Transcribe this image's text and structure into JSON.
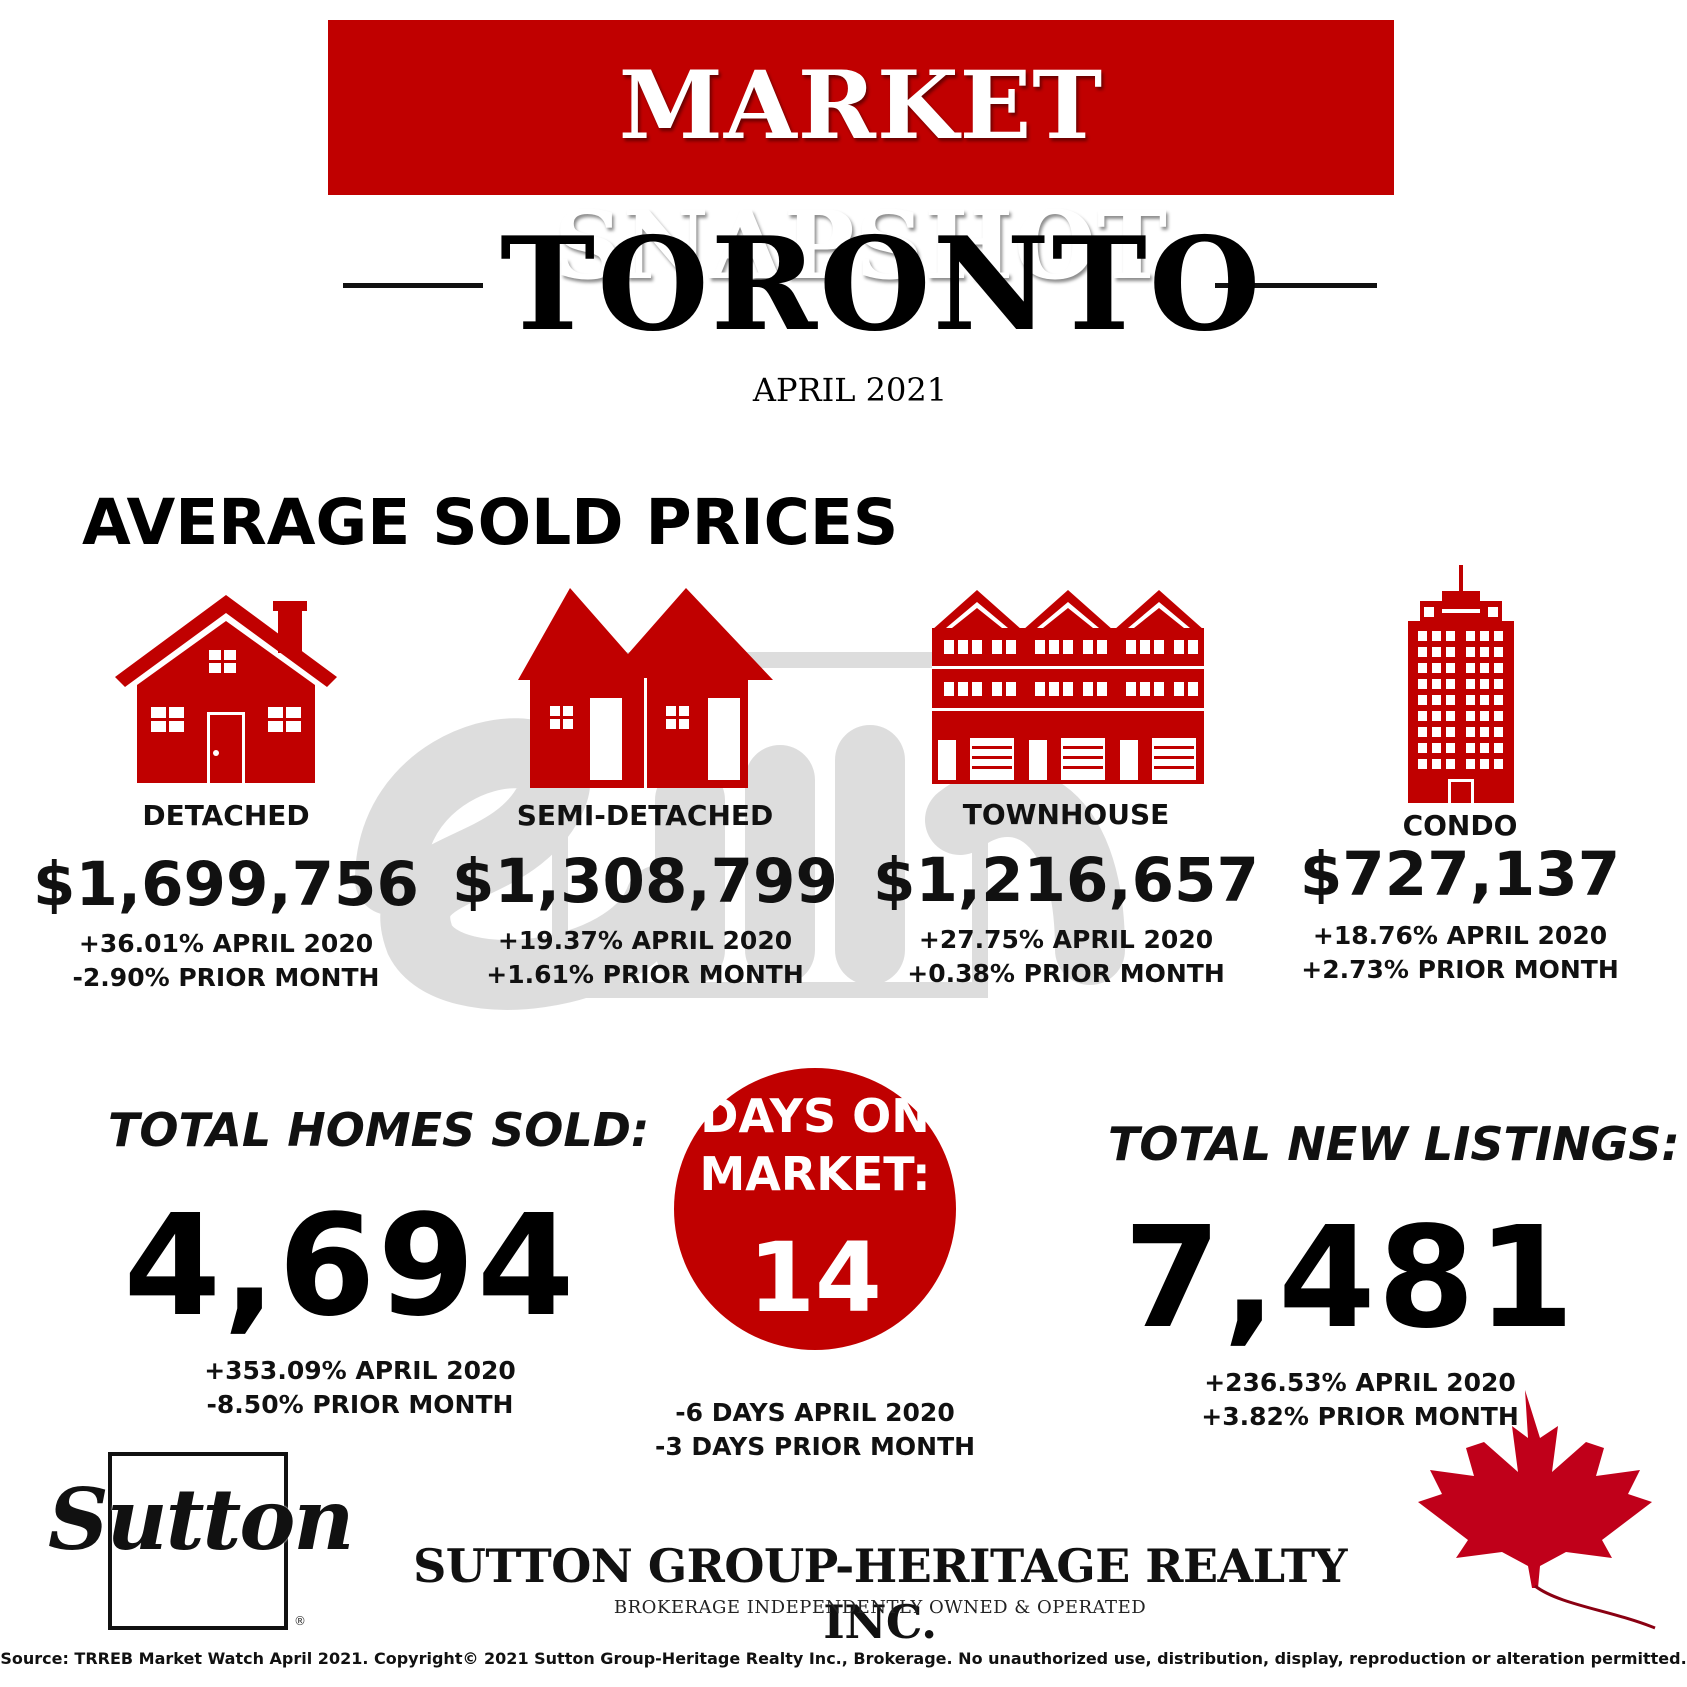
{
  "header": {
    "banner_title": "MARKET SNAPSHOT",
    "city": "TORONTO",
    "month": "APRIL 2021"
  },
  "colors": {
    "accent": "#c00000",
    "text": "#111111",
    "background": "#ffffff"
  },
  "average_sold_prices": {
    "title": "AVERAGE SOLD PRICES",
    "categories": [
      {
        "icon": "detached-house-icon",
        "label": "DETACHED",
        "price": "$1,699,756",
        "yoy": "+36.01% APRIL 2020",
        "mom": "-2.90% PRIOR MONTH"
      },
      {
        "icon": "semi-detached-house-icon",
        "label": "SEMI-DETACHED",
        "price": "$1,308,799",
        "yoy": "+19.37% APRIL 2020",
        "mom": "+1.61% PRIOR MONTH"
      },
      {
        "icon": "townhouse-icon",
        "label": "TOWNHOUSE",
        "price": "$1,216,657",
        "yoy": "+27.75% APRIL 2020",
        "mom": "+0.38% PRIOR MONTH"
      },
      {
        "icon": "condo-tower-icon",
        "label": "CONDO",
        "price": "$727,137",
        "yoy": "+18.76% APRIL 2020",
        "mom": "+2.73% PRIOR MONTH"
      }
    ]
  },
  "total_homes_sold": {
    "heading": "TOTAL HOMES SOLD:",
    "value": "4,694",
    "yoy": "+353.09% APRIL 2020",
    "mom": "-8.50% PRIOR MONTH"
  },
  "days_on_market": {
    "heading_line1": "DAYS ON",
    "heading_line2": "MARKET:",
    "value": "14",
    "yoy": "-6 DAYS APRIL 2020",
    "mom": "-3 DAYS PRIOR MONTH"
  },
  "total_new_listings": {
    "heading": "TOTAL NEW LISTINGS:",
    "value": "7,481",
    "yoy": "+236.53% APRIL 2020",
    "mom": "+3.82% PRIOR MONTH"
  },
  "brand": {
    "logo_word": "Sutton",
    "logo_mark": "®",
    "company": "SUTTON GROUP-HERITAGE REALTY INC.",
    "tagline": "BROKERAGE INDEPENDENTLY OWNED & OPERATED",
    "leaf_icon": "maple-leaf-icon"
  },
  "footer": {
    "source": "Source: TRREB Market Watch April 2021.  Copyright© 2021 Sutton Group-Heritage Realty Inc., Brokerage. No unauthorized use, distribution, display, reproduction or alteration permitted."
  }
}
